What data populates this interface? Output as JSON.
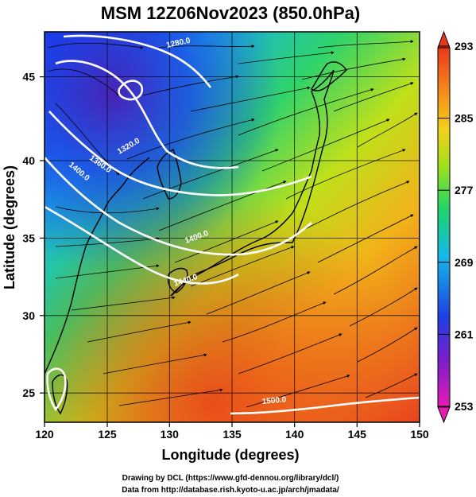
{
  "chart_data": {
    "type": "heatmap",
    "title": "MSM 12Z06Nov2023 (850.0hPa)",
    "xlabel": "Longitude (degrees)",
    "ylabel": "Latitude  (degrees)",
    "xlim": [
      120,
      150
    ],
    "ylim": [
      22.4,
      47.6
    ],
    "x_ticks": [
      120,
      125,
      130,
      135,
      140,
      145,
      150
    ],
    "y_ticks": [
      25,
      30,
      35,
      40,
      45
    ],
    "grid": true,
    "colorbar": {
      "min": 253,
      "max": 293,
      "tick_values": [
        253,
        261,
        269,
        277,
        285,
        293
      ],
      "position": "right",
      "colors": [
        "#e81cb4",
        "#7a1fc8",
        "#1f3fe0",
        "#15b8e8",
        "#1fd46a",
        "#9fe01c",
        "#f2d21c",
        "#f58a1c",
        "#e8381c"
      ]
    },
    "contour_labels": [
      {
        "text": "1280.0",
        "lon": 126.2,
        "lat": 46.2
      },
      {
        "text": "1360.0",
        "lon": 124.3,
        "lat": 40.3
      },
      {
        "text": "1400.0",
        "lon": 122.6,
        "lat": 39.6
      },
      {
        "text": "1320.0",
        "lon": 127.3,
        "lat": 40.2
      },
      {
        "text": "1400.0",
        "lon": 133.0,
        "lat": 35.0
      },
      {
        "text": "1440.0",
        "lon": 130.6,
        "lat": 31.5
      },
      {
        "text": "1500.0",
        "lon": 137.5,
        "lat": 23.5
      }
    ],
    "credits": [
      "Drawing by DCL (https://www.gfd-dennou.org/library/dcl/)",
      "Data from http://database.rish.kyoto-u.ac.jp/arch/jmadata/"
    ]
  }
}
